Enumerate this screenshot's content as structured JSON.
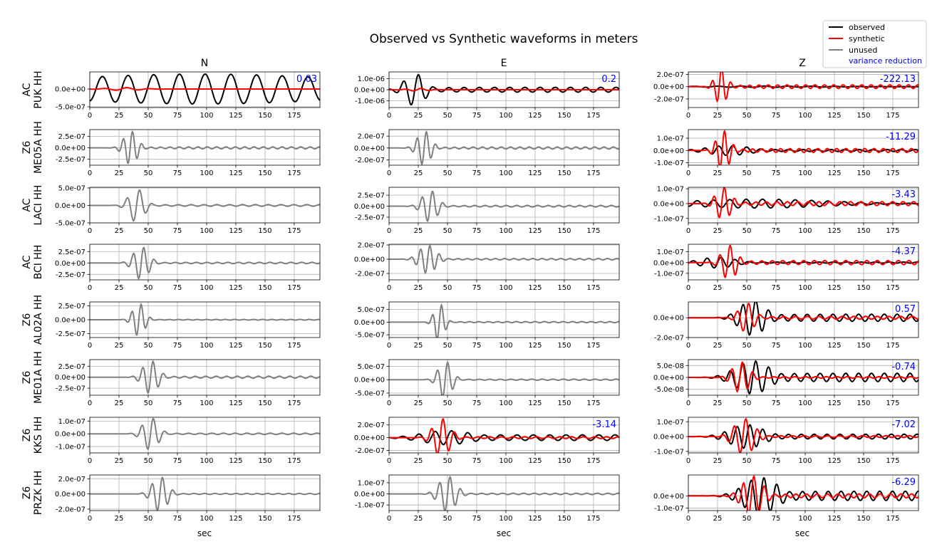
{
  "figure": {
    "title": "Observed vs Synthetic waveforms in meters",
    "x_label": "sec",
    "column_headers": [
      "N",
      "E",
      "Z"
    ],
    "x_ticks": [
      "0",
      "25",
      "50",
      "75",
      "100",
      "125",
      "150",
      "175"
    ]
  },
  "legend": {
    "placement": "top-right",
    "entries": [
      {
        "label": "observed",
        "color": "#000000"
      },
      {
        "label": "synthetic",
        "color": "#ff0000"
      },
      {
        "label": "unused",
        "color": "#808080"
      },
      {
        "label": "variance reduction",
        "color": "#0000ff"
      }
    ]
  },
  "chart_data": {
    "type": "line",
    "title": "Observed vs Synthetic waveforms in meters",
    "xlabel": "sec",
    "xlim": [
      0,
      197
    ],
    "grid": true,
    "legend_position": "top-right",
    "colors": {
      "observed": "#000000",
      "synthetic": "#ff0000",
      "unused": "#808080",
      "variance_reduction": "#0000ff"
    },
    "stations": [
      {
        "network": "AC",
        "station": "PUK HH",
        "rows": [
          "AC",
          "PUK HH"
        ]
      },
      {
        "network": "Z6",
        "station": "ME05A HH",
        "rows": [
          "Z6",
          "ME05A HH"
        ]
      },
      {
        "network": "AC",
        "station": "LACI HH",
        "rows": [
          "AC",
          "LACI HH"
        ]
      },
      {
        "network": "AC",
        "station": "BCI HH",
        "rows": [
          "AC",
          "BCI HH"
        ]
      },
      {
        "network": "Z6",
        "station": "AL02A HH",
        "rows": [
          "Z6",
          "AL02A HH"
        ]
      },
      {
        "network": "Z6",
        "station": "ME01A HH",
        "rows": [
          "Z6",
          "ME01A HH"
        ]
      },
      {
        "network": "Z6",
        "station": "KKS HH",
        "rows": [
          "Z6",
          "KKS HH"
        ]
      },
      {
        "network": "Z6",
        "station": "PRZK HH",
        "rows": [
          "Z6",
          "PRZK HH"
        ]
      }
    ],
    "panels": [
      {
        "station": "AC PUK HH",
        "component": "N",
        "used": true,
        "vr": "0.03",
        "ylim": [
          -5.2e-07,
          4.8e-07
        ],
        "yticks": [
          5e-07,
          0,
          -5e-07
        ],
        "ytick_labels": [
          "",
          "0.0e+00",
          "-5.0e-07"
        ],
        "obs": {
          "amp": 4.2e-07,
          "t0": 0,
          "t1": 197,
          "t_peak": 95,
          "width": 200,
          "period": 22,
          "phase": 0.5
        },
        "syn": {
          "amp": 4e-08,
          "t0": 0,
          "t1": 197,
          "t_peak": 30,
          "width": 18,
          "period": 20,
          "phase": 1.0
        }
      },
      {
        "station": "AC PUK HH",
        "component": "E",
        "used": true,
        "vr": "0.2",
        "ylim": [
          -1.6e-06,
          1.6e-06
        ],
        "yticks": [
          1e-06,
          0,
          -1e-06
        ],
        "ytick_labels": [
          "1.0e-06",
          "0.0e+00",
          "-1.0e-06"
        ],
        "obs": {
          "amp": 1.45e-06,
          "t0": 0,
          "t1": 197,
          "t_peak": 22,
          "width": 12,
          "period": 13,
          "phase": 0.0,
          "tail": 0.15
        },
        "syn": {
          "amp": 1.2e-07,
          "t0": 0,
          "t1": 197,
          "t_peak": 25,
          "width": 12,
          "period": 14,
          "phase": 0.5
        }
      },
      {
        "station": "AC PUK HH",
        "component": "Z",
        "used": true,
        "vr": "-222.13",
        "ylim": [
          -3.4e-07,
          2.4e-07
        ],
        "yticks": [
          2e-07,
          0,
          -2e-07
        ],
        "ytick_labels": [
          "2.0e-07",
          "0.0e+00",
          "-2.0e-07"
        ],
        "obs": {
          "amp": 1e-08,
          "t0": 0,
          "t1": 197,
          "t_peak": 60,
          "width": 80,
          "period": 20,
          "phase": 0.0
        },
        "syn": {
          "amp": 3e-07,
          "t0": 0,
          "t1": 197,
          "t_peak": 28,
          "width": 7,
          "period": 8,
          "phase": 1.2,
          "tail": 0.1
        }
      },
      {
        "station": "Z6 ME05A HH",
        "component": "N",
        "used": false,
        "ylim": [
          -3.8e-07,
          4e-07
        ],
        "yticks": [
          2.5e-07,
          0,
          -2.5e-07
        ],
        "ytick_labels": [
          "2.5e-07",
          "0.0e+00",
          "-2.5e-07"
        ],
        "obs": {
          "amp": 3.7e-07,
          "t0": 0,
          "t1": 197,
          "t_peak": 35,
          "width": 8,
          "period": 8,
          "phase": 0.3,
          "tail": 0.06
        }
      },
      {
        "station": "Z6 ME05A HH",
        "component": "E",
        "used": false,
        "ylim": [
          -2.9e-07,
          3.1e-07
        ],
        "yticks": [
          2e-07,
          0,
          -2e-07
        ],
        "ytick_labels": [
          "2.0e-07",
          "0.0e+00",
          "-2.0e-07"
        ],
        "obs": {
          "amp": 2.9e-07,
          "t0": 0,
          "t1": 197,
          "t_peak": 30,
          "width": 8,
          "period": 8,
          "phase": 0.0,
          "tail": 0.06
        }
      },
      {
        "station": "Z6 ME05A HH",
        "component": "Z",
        "used": true,
        "vr": "-11.29",
        "ylim": [
          -1.2e-07,
          1.7e-07
        ],
        "yticks": [
          1e-07,
          0,
          -1e-07
        ],
        "ytick_labels": [
          "1.0e-07",
          "0.0e+00",
          "-1.0e-07"
        ],
        "obs": {
          "amp": 4e-08,
          "t0": 0,
          "t1": 197,
          "t_peak": 35,
          "width": 25,
          "period": 12,
          "phase": 0.0,
          "tail": 0.2
        },
        "syn": {
          "amp": 1.6e-07,
          "t0": 0,
          "t1": 197,
          "t_peak": 30,
          "width": 8,
          "period": 8,
          "phase": 0.8,
          "tail": 0.1
        }
      },
      {
        "station": "AC LACI HH",
        "component": "N",
        "used": false,
        "ylim": [
          -5e-07,
          5.2e-07
        ],
        "yticks": [
          5e-07,
          0,
          -5e-07
        ],
        "ytick_labels": [
          "5.0e-07",
          "0.0e+00",
          "-5.0e-07"
        ],
        "obs": {
          "amp": 4.8e-07,
          "t0": 0,
          "t1": 197,
          "t_peak": 40,
          "width": 9,
          "period": 11,
          "phase": 0.0,
          "tail": 0.05
        }
      },
      {
        "station": "AC LACI HH",
        "component": "E",
        "used": false,
        "ylim": [
          -3.8e-07,
          4.3e-07
        ],
        "yticks": [
          2.5e-07,
          0,
          -2.5e-07
        ],
        "ytick_labels": [
          "2.5e-07",
          "0.0e+00",
          "-2.5e-07"
        ],
        "obs": {
          "amp": 3.6e-07,
          "t0": 0,
          "t1": 197,
          "t_peak": 35,
          "width": 9,
          "period": 9,
          "phase": 0.0,
          "tail": 0.05
        }
      },
      {
        "station": "AC LACI HH",
        "component": "Z",
        "used": true,
        "vr": "-3.43",
        "ylim": [
          -1.3e-07,
          1.1e-07
        ],
        "yticks": [
          1e-07,
          0,
          -1e-07
        ],
        "ytick_labels": [
          "1.0e-07",
          "0.0e+00",
          "-1.0e-07"
        ],
        "obs": {
          "amp": 3e-08,
          "t0": 0,
          "t1": 197,
          "t_peak": 60,
          "width": 80,
          "period": 14,
          "phase": 0.0
        },
        "syn": {
          "amp": 1.1e-07,
          "t0": 0,
          "t1": 197,
          "t_peak": 30,
          "width": 9,
          "period": 9,
          "phase": 1.0,
          "tail": 0.12
        }
      },
      {
        "station": "AC BCI HH",
        "component": "N",
        "used": false,
        "ylim": [
          -3.7e-07,
          4.1e-07
        ],
        "yticks": [
          2.5e-07,
          0,
          -2.5e-07
        ],
        "ytick_labels": [
          "2.5e-07",
          "0.0e+00",
          "-2.5e-07"
        ],
        "obs": {
          "amp": 3.6e-07,
          "t0": 0,
          "t1": 197,
          "t_peak": 44,
          "width": 9,
          "period": 9,
          "phase": 0.0,
          "tail": 0.04
        }
      },
      {
        "station": "AC BCI HH",
        "component": "E",
        "used": false,
        "ylim": [
          -2.9e-07,
          2.1e-07
        ],
        "yticks": [
          2e-07,
          0,
          -2e-07
        ],
        "ytick_labels": [
          "2.0e-07",
          "0.0e+00",
          "-2.0e-07"
        ],
        "obs": {
          "amp": 2e-07,
          "t0": 0,
          "t1": 197,
          "t_peak": 33,
          "width": 10,
          "period": 8,
          "phase": 0.0,
          "tail": 0.05
        }
      },
      {
        "station": "AC BCI HH",
        "component": "Z",
        "used": true,
        "vr": "-4.37",
        "ylim": [
          -1.6e-07,
          1.7e-07
        ],
        "yticks": [
          1e-07,
          0,
          -1e-07
        ],
        "ytick_labels": [
          "1.0e-07",
          "0.0e+00",
          "-1.0e-07"
        ],
        "obs": {
          "amp": 5e-08,
          "t0": 0,
          "t1": 197,
          "t_peak": 25,
          "width": 20,
          "period": 12,
          "phase": 0.0,
          "tail": 0.1
        },
        "syn": {
          "amp": 1.6e-07,
          "t0": 0,
          "t1": 197,
          "t_peak": 35,
          "width": 9,
          "period": 9,
          "phase": 1.0,
          "tail": 0.12
        }
      },
      {
        "station": "Z6 AL02A HH",
        "component": "N",
        "used": false,
        "ylim": [
          -3.2e-07,
          3.2e-07
        ],
        "yticks": [
          2.5e-07,
          0,
          -2.5e-07
        ],
        "ytick_labels": [
          "2.5e-07",
          "0.0e+00",
          "-2.5e-07"
        ],
        "obs": {
          "amp": 3e-07,
          "t0": 0,
          "t1": 197,
          "t_peak": 42,
          "width": 7,
          "period": 8,
          "phase": 0.0,
          "tail": 0.02
        }
      },
      {
        "station": "Z6 AL02A HH",
        "component": "E",
        "used": false,
        "ylim": [
          -6.1e-07,
          8e-07
        ],
        "yticks": [
          5e-07,
          0,
          -5e-07
        ],
        "ytick_labels": [
          "5.0e-07",
          "0.0e+00",
          "-5.0e-07"
        ],
        "obs": {
          "amp": 7.5e-07,
          "t0": 0,
          "t1": 197,
          "t_peak": 43,
          "width": 6,
          "period": 8,
          "phase": 0.0,
          "tail": 0.03
        }
      },
      {
        "station": "Z6 AL02A HH",
        "component": "Z",
        "used": true,
        "vr": "0.57",
        "ylim": [
          -2e-07,
          1.6e-07
        ],
        "yticks": [
          0,
          -2e-07
        ],
        "ytick_labels": [
          "0.0e+00",
          "-2.0e-07"
        ],
        "obs": {
          "amp": 1.8e-07,
          "t0": 0,
          "t1": 197,
          "t_peak": 55,
          "width": 15,
          "period": 11,
          "phase": 0.0,
          "tail": 0.2
        },
        "syn": {
          "amp": 1.5e-07,
          "t0": 0,
          "t1": 197,
          "t_peak": 50,
          "width": 9,
          "period": 10,
          "phase": 0.5,
          "tail": 0.1
        }
      },
      {
        "station": "Z6 ME01A HH",
        "component": "N",
        "used": false,
        "ylim": [
          -4.1e-07,
          4e-07
        ],
        "yticks": [
          2.5e-07,
          0,
          -2.5e-07
        ],
        "ytick_labels": [
          "2.5e-07",
          "0.0e+00",
          "-2.5e-07"
        ],
        "obs": {
          "amp": 3.8e-07,
          "t0": 0,
          "t1": 197,
          "t_peak": 52,
          "width": 9,
          "period": 9,
          "phase": 0.0,
          "tail": 0.06
        }
      },
      {
        "station": "Z6 ME01A HH",
        "component": "E",
        "used": false,
        "ylim": [
          -5.8e-07,
          7.5e-07
        ],
        "yticks": [
          5e-07,
          0,
          -5e-07
        ],
        "ytick_labels": [
          "5.0e-07",
          "0.0e+00",
          "-5.0e-07"
        ],
        "obs": {
          "amp": 7e-07,
          "t0": 0,
          "t1": 197,
          "t_peak": 48,
          "width": 8,
          "period": 9,
          "phase": 0.0,
          "tail": 0.03
        }
      },
      {
        "station": "Z6 ME01A HH",
        "component": "Z",
        "used": true,
        "vr": "-0.74",
        "ylim": [
          -7.5e-08,
          7.5e-08
        ],
        "yticks": [
          5e-08,
          0,
          -5e-08
        ],
        "ytick_labels": [
          "5.0e-08",
          "0.0e+00",
          "-5.0e-08"
        ],
        "obs": {
          "amp": 7e-08,
          "t0": 0,
          "t1": 197,
          "t_peak": 55,
          "width": 20,
          "period": 11,
          "phase": 0.0,
          "tail": 0.25
        },
        "syn": {
          "amp": 6.5e-08,
          "t0": 0,
          "t1": 197,
          "t_peak": 45,
          "width": 10,
          "period": 9,
          "phase": 0.7,
          "tail": 0.05
        }
      },
      {
        "station": "Z6 KKS HH",
        "component": "N",
        "used": false,
        "ylim": [
          -1.5e-07,
          1.3e-07
        ],
        "yticks": [
          1e-07,
          0,
          -1e-07
        ],
        "ytick_labels": [
          "1.0e-07",
          "0.0e+00",
          "-1.0e-07"
        ],
        "obs": {
          "amp": 1.3e-07,
          "t0": 0,
          "t1": 197,
          "t_peak": 52,
          "width": 9,
          "period": 10,
          "phase": 0.0,
          "tail": 0.04
        }
      },
      {
        "station": "Z6 KKS HH",
        "component": "E",
        "used": true,
        "vr": "-3.14",
        "ylim": [
          -2.4e-07,
          3.2e-07
        ],
        "yticks": [
          2e-07,
          0,
          -2e-07
        ],
        "ytick_labels": [
          "2.0e-07",
          "0.0e+00",
          "-2.0e-07"
        ],
        "obs": {
          "amp": 1.1e-07,
          "t0": 0,
          "t1": 197,
          "t_peak": 50,
          "width": 30,
          "period": 14,
          "phase": 0.0,
          "tail": 0.4
        },
        "syn": {
          "amp": 3e-07,
          "t0": 0,
          "t1": 197,
          "t_peak": 45,
          "width": 10,
          "period": 10,
          "phase": 0.8,
          "tail": 0.05
        }
      },
      {
        "station": "Z6 KKS HH",
        "component": "Z",
        "used": true,
        "vr": "-7.02",
        "ylim": [
          -1.1e-07,
          1.3e-07
        ],
        "yticks": [
          1e-07,
          0,
          -1e-07
        ],
        "ytick_labels": [
          "1.0e-07",
          "0.0e+00",
          "-1.0e-07"
        ],
        "obs": {
          "amp": 8e-08,
          "t0": 0,
          "t1": 197,
          "t_peak": 50,
          "width": 20,
          "period": 11,
          "phase": 0.0,
          "tail": 0.2
        },
        "syn": {
          "amp": 1.2e-07,
          "t0": 0,
          "t1": 197,
          "t_peak": 48,
          "width": 12,
          "period": 10,
          "phase": 0.8,
          "tail": 0.05
        }
      },
      {
        "station": "Z6 PRZK HH",
        "component": "N",
        "used": false,
        "ylim": [
          -2.2e-07,
          2.5e-07
        ],
        "yticks": [
          2e-07,
          0,
          -2e-07
        ],
        "ytick_labels": [
          "2.0e-07",
          "0.0e+00",
          "-2.0e-07"
        ],
        "obs": {
          "amp": 2.3e-07,
          "t0": 0,
          "t1": 197,
          "t_peak": 60,
          "width": 9,
          "period": 9,
          "phase": 0.0,
          "tail": 0.03
        }
      },
      {
        "station": "Z6 PRZK HH",
        "component": "E",
        "used": false,
        "ylim": [
          -1.5e-07,
          1.7e-07
        ],
        "yticks": [
          1e-07,
          0,
          -1e-07
        ],
        "ytick_labels": [
          "1.0e-07",
          "0.0e+00",
          "-1.0e-07"
        ],
        "obs": {
          "amp": 1.6e-07,
          "t0": 0,
          "t1": 197,
          "t_peak": 50,
          "width": 10,
          "period": 9,
          "phase": 0.0,
          "tail": 0.04
        }
      },
      {
        "station": "Z6 PRZK HH",
        "component": "Z",
        "used": true,
        "vr": "-6.29",
        "ylim": [
          -1.2e-07,
          1.7e-07
        ],
        "yticks": [
          0,
          -1e-07
        ],
        "ytick_labels": [
          "0.0e+00",
          "-1.0e-07"
        ],
        "obs": {
          "amp": 1.5e-07,
          "t0": 0,
          "t1": 197,
          "t_peak": 62,
          "width": 20,
          "period": 11,
          "phase": 0.0,
          "tail": 0.25
        },
        "syn": {
          "amp": 1.6e-07,
          "t0": 0,
          "t1": 197,
          "t_peak": 55,
          "width": 12,
          "period": 9,
          "phase": 0.8,
          "tail": 0.1
        }
      }
    ]
  }
}
